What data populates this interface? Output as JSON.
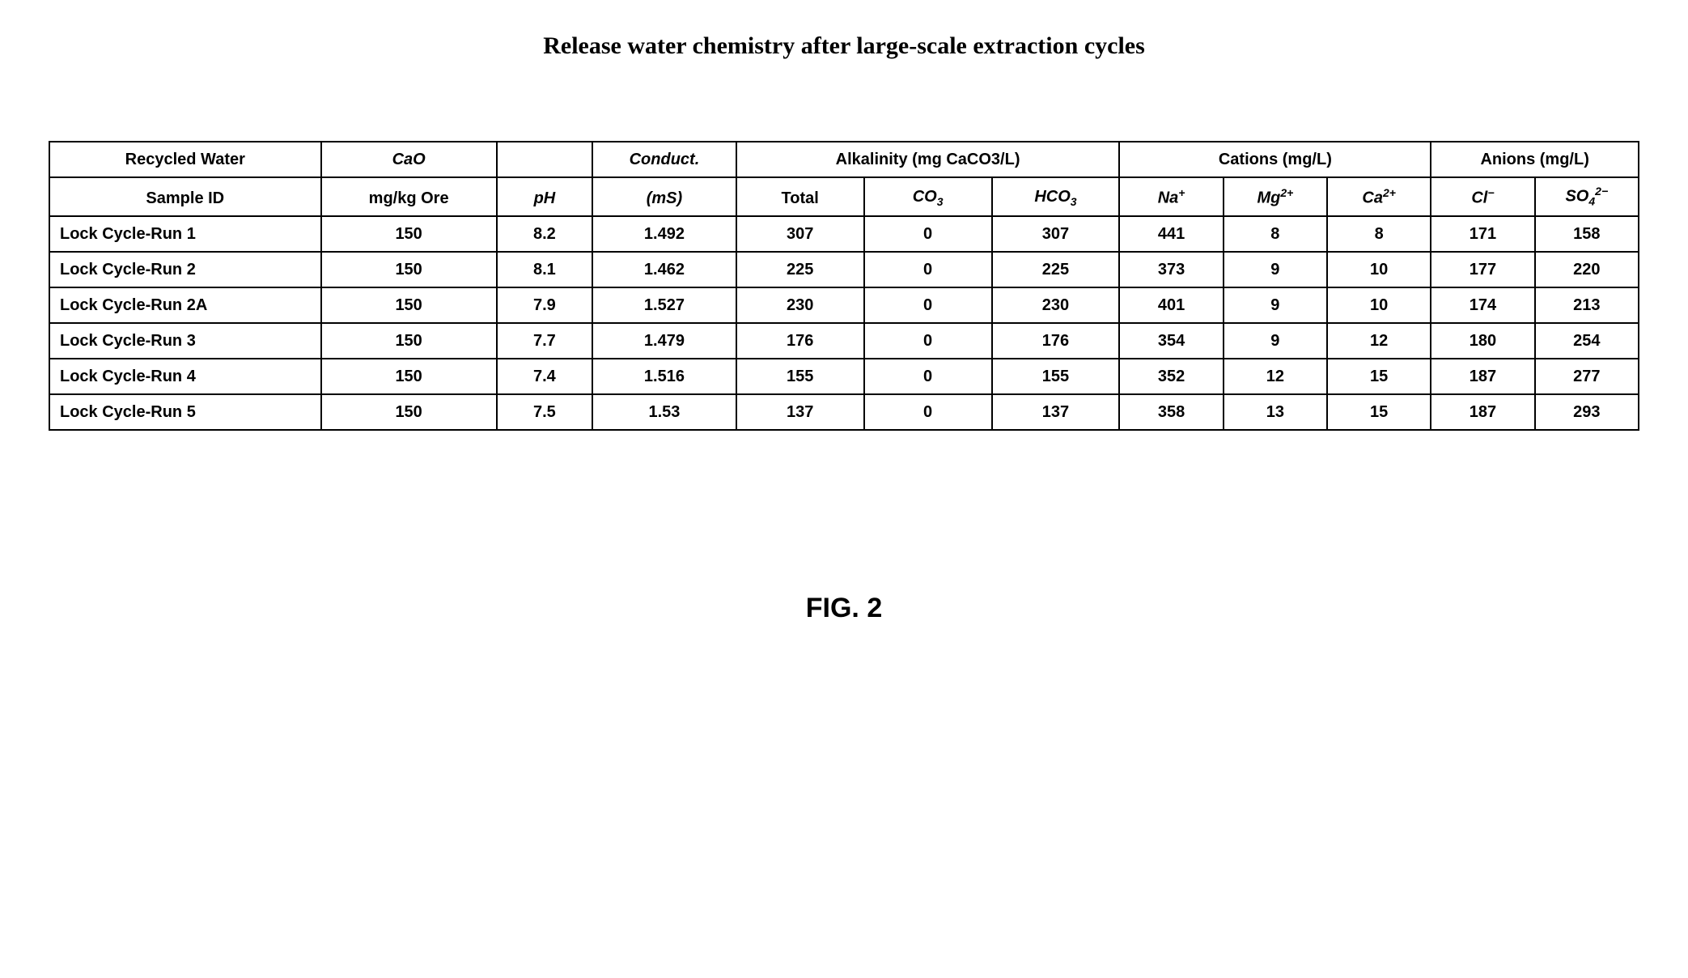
{
  "title": "Release water chemistry after large-scale extraction cycles",
  "figure_label": "FIG. 2",
  "table": {
    "group_headers": {
      "recycled_water": "Recycled Water",
      "cao": "CaO",
      "ph_blank": "",
      "conduct": "Conduct.",
      "alkalinity": "Alkalinity (mg CaCO3/L)",
      "cations": "Cations (mg/L)",
      "anions": "Anions (mg/L)"
    },
    "sub_headers": {
      "sample_id": "Sample ID",
      "cao_unit": "mg/kg Ore",
      "ph": "pH",
      "conduct_unit": "(mS)",
      "total": "Total",
      "co3_label": "CO",
      "co3_sub": "3",
      "hco3_label": "HCO",
      "hco3_sub": "3",
      "na_label": "Na",
      "na_sup": "+",
      "mg_label": "Mg",
      "mg_sup": "2+",
      "ca_label": "Ca",
      "ca_sup": "2+",
      "cl_label": "Cl",
      "cl_sup": "−",
      "so4_label": "SO",
      "so4_sub": "4",
      "so4_sup": "2−"
    },
    "rows": [
      {
        "sample": "Lock Cycle-Run 1",
        "cao": "150",
        "ph": "8.2",
        "cond": "1.492",
        "total": "307",
        "co3": "0",
        "hco3": "307",
        "na": "441",
        "mg": "8",
        "ca": "8",
        "cl": "171",
        "so4": "158"
      },
      {
        "sample": "Lock Cycle-Run 2",
        "cao": "150",
        "ph": "8.1",
        "cond": "1.462",
        "total": "225",
        "co3": "0",
        "hco3": "225",
        "na": "373",
        "mg": "9",
        "ca": "10",
        "cl": "177",
        "so4": "220"
      },
      {
        "sample": "Lock Cycle-Run 2A",
        "cao": "150",
        "ph": "7.9",
        "cond": "1.527",
        "total": "230",
        "co3": "0",
        "hco3": "230",
        "na": "401",
        "mg": "9",
        "ca": "10",
        "cl": "174",
        "so4": "213"
      },
      {
        "sample": "Lock Cycle-Run 3",
        "cao": "150",
        "ph": "7.7",
        "cond": "1.479",
        "total": "176",
        "co3": "0",
        "hco3": "176",
        "na": "354",
        "mg": "9",
        "ca": "12",
        "cl": "180",
        "so4": "254"
      },
      {
        "sample": "Lock Cycle-Run 4",
        "cao": "150",
        "ph": "7.4",
        "cond": "1.516",
        "total": "155",
        "co3": "0",
        "hco3": "155",
        "na": "352",
        "mg": "12",
        "ca": "15",
        "cl": "187",
        "so4": "277"
      },
      {
        "sample": "Lock Cycle-Run 5",
        "cao": "150",
        "ph": "7.5",
        "cond": "1.53",
        "total": "137",
        "co3": "0",
        "hco3": "137",
        "na": "358",
        "mg": "13",
        "ca": "15",
        "cl": "187",
        "so4": "293"
      }
    ]
  }
}
